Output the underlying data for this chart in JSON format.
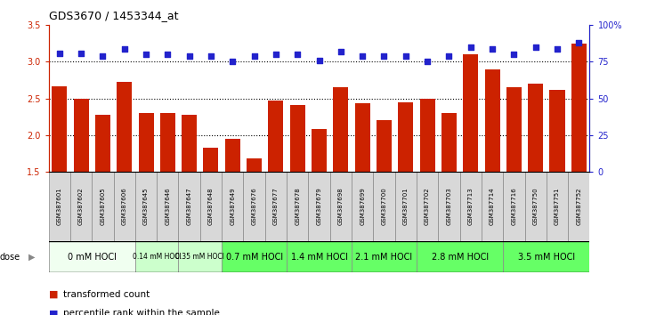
{
  "title": "GDS3670 / 1453344_at",
  "samples": [
    "GSM387601",
    "GSM387602",
    "GSM387605",
    "GSM387606",
    "GSM387645",
    "GSM387646",
    "GSM387647",
    "GSM387648",
    "GSM387649",
    "GSM387676",
    "GSM387677",
    "GSM387678",
    "GSM387679",
    "GSM387698",
    "GSM387699",
    "GSM387700",
    "GSM387701",
    "GSM387702",
    "GSM387703",
    "GSM387713",
    "GSM387714",
    "GSM387716",
    "GSM387750",
    "GSM387751",
    "GSM387752"
  ],
  "bar_values": [
    2.66,
    2.5,
    2.28,
    2.73,
    2.3,
    2.3,
    2.28,
    1.83,
    1.95,
    1.68,
    2.47,
    2.41,
    2.08,
    2.65,
    2.44,
    2.2,
    2.45,
    2.5,
    2.3,
    3.1,
    2.9,
    2.65,
    2.7,
    2.62,
    3.25
  ],
  "dot_values_pct": [
    81,
    81,
    79,
    84,
    80,
    80,
    79,
    79,
    75,
    79,
    80,
    80,
    76,
    82,
    79,
    79,
    79,
    75,
    79,
    85,
    84,
    80,
    85,
    84,
    88
  ],
  "dose_groups": [
    {
      "label": "0 mM HOCl",
      "start": 0,
      "end": 4,
      "color": "#f0fff0"
    },
    {
      "label": "0.14 mM HOCl",
      "start": 4,
      "end": 6,
      "color": "#ccffcc"
    },
    {
      "label": "0.35 mM HOCl",
      "start": 6,
      "end": 8,
      "color": "#ccffcc"
    },
    {
      "label": "0.7 mM HOCl",
      "start": 8,
      "end": 11,
      "color": "#66ff66"
    },
    {
      "label": "1.4 mM HOCl",
      "start": 11,
      "end": 14,
      "color": "#66ff66"
    },
    {
      "label": "2.1 mM HOCl",
      "start": 14,
      "end": 17,
      "color": "#66ff66"
    },
    {
      "label": "2.8 mM HOCl",
      "start": 17,
      "end": 21,
      "color": "#66ff66"
    },
    {
      "label": "3.5 mM HOCl",
      "start": 21,
      "end": 25,
      "color": "#66ff66"
    }
  ],
  "bar_color": "#cc2200",
  "dot_color": "#2222cc",
  "ymin": 1.5,
  "ymax": 3.5,
  "y2min": 0,
  "y2max": 100,
  "yticks": [
    1.5,
    2.0,
    2.5,
    3.0,
    3.5
  ],
  "y2ticks": [
    0,
    25,
    50,
    75,
    100
  ],
  "hlines": [
    2.0,
    2.5,
    3.0
  ],
  "legend_bar": "transformed count",
  "legend_dot": "percentile rank within the sample"
}
